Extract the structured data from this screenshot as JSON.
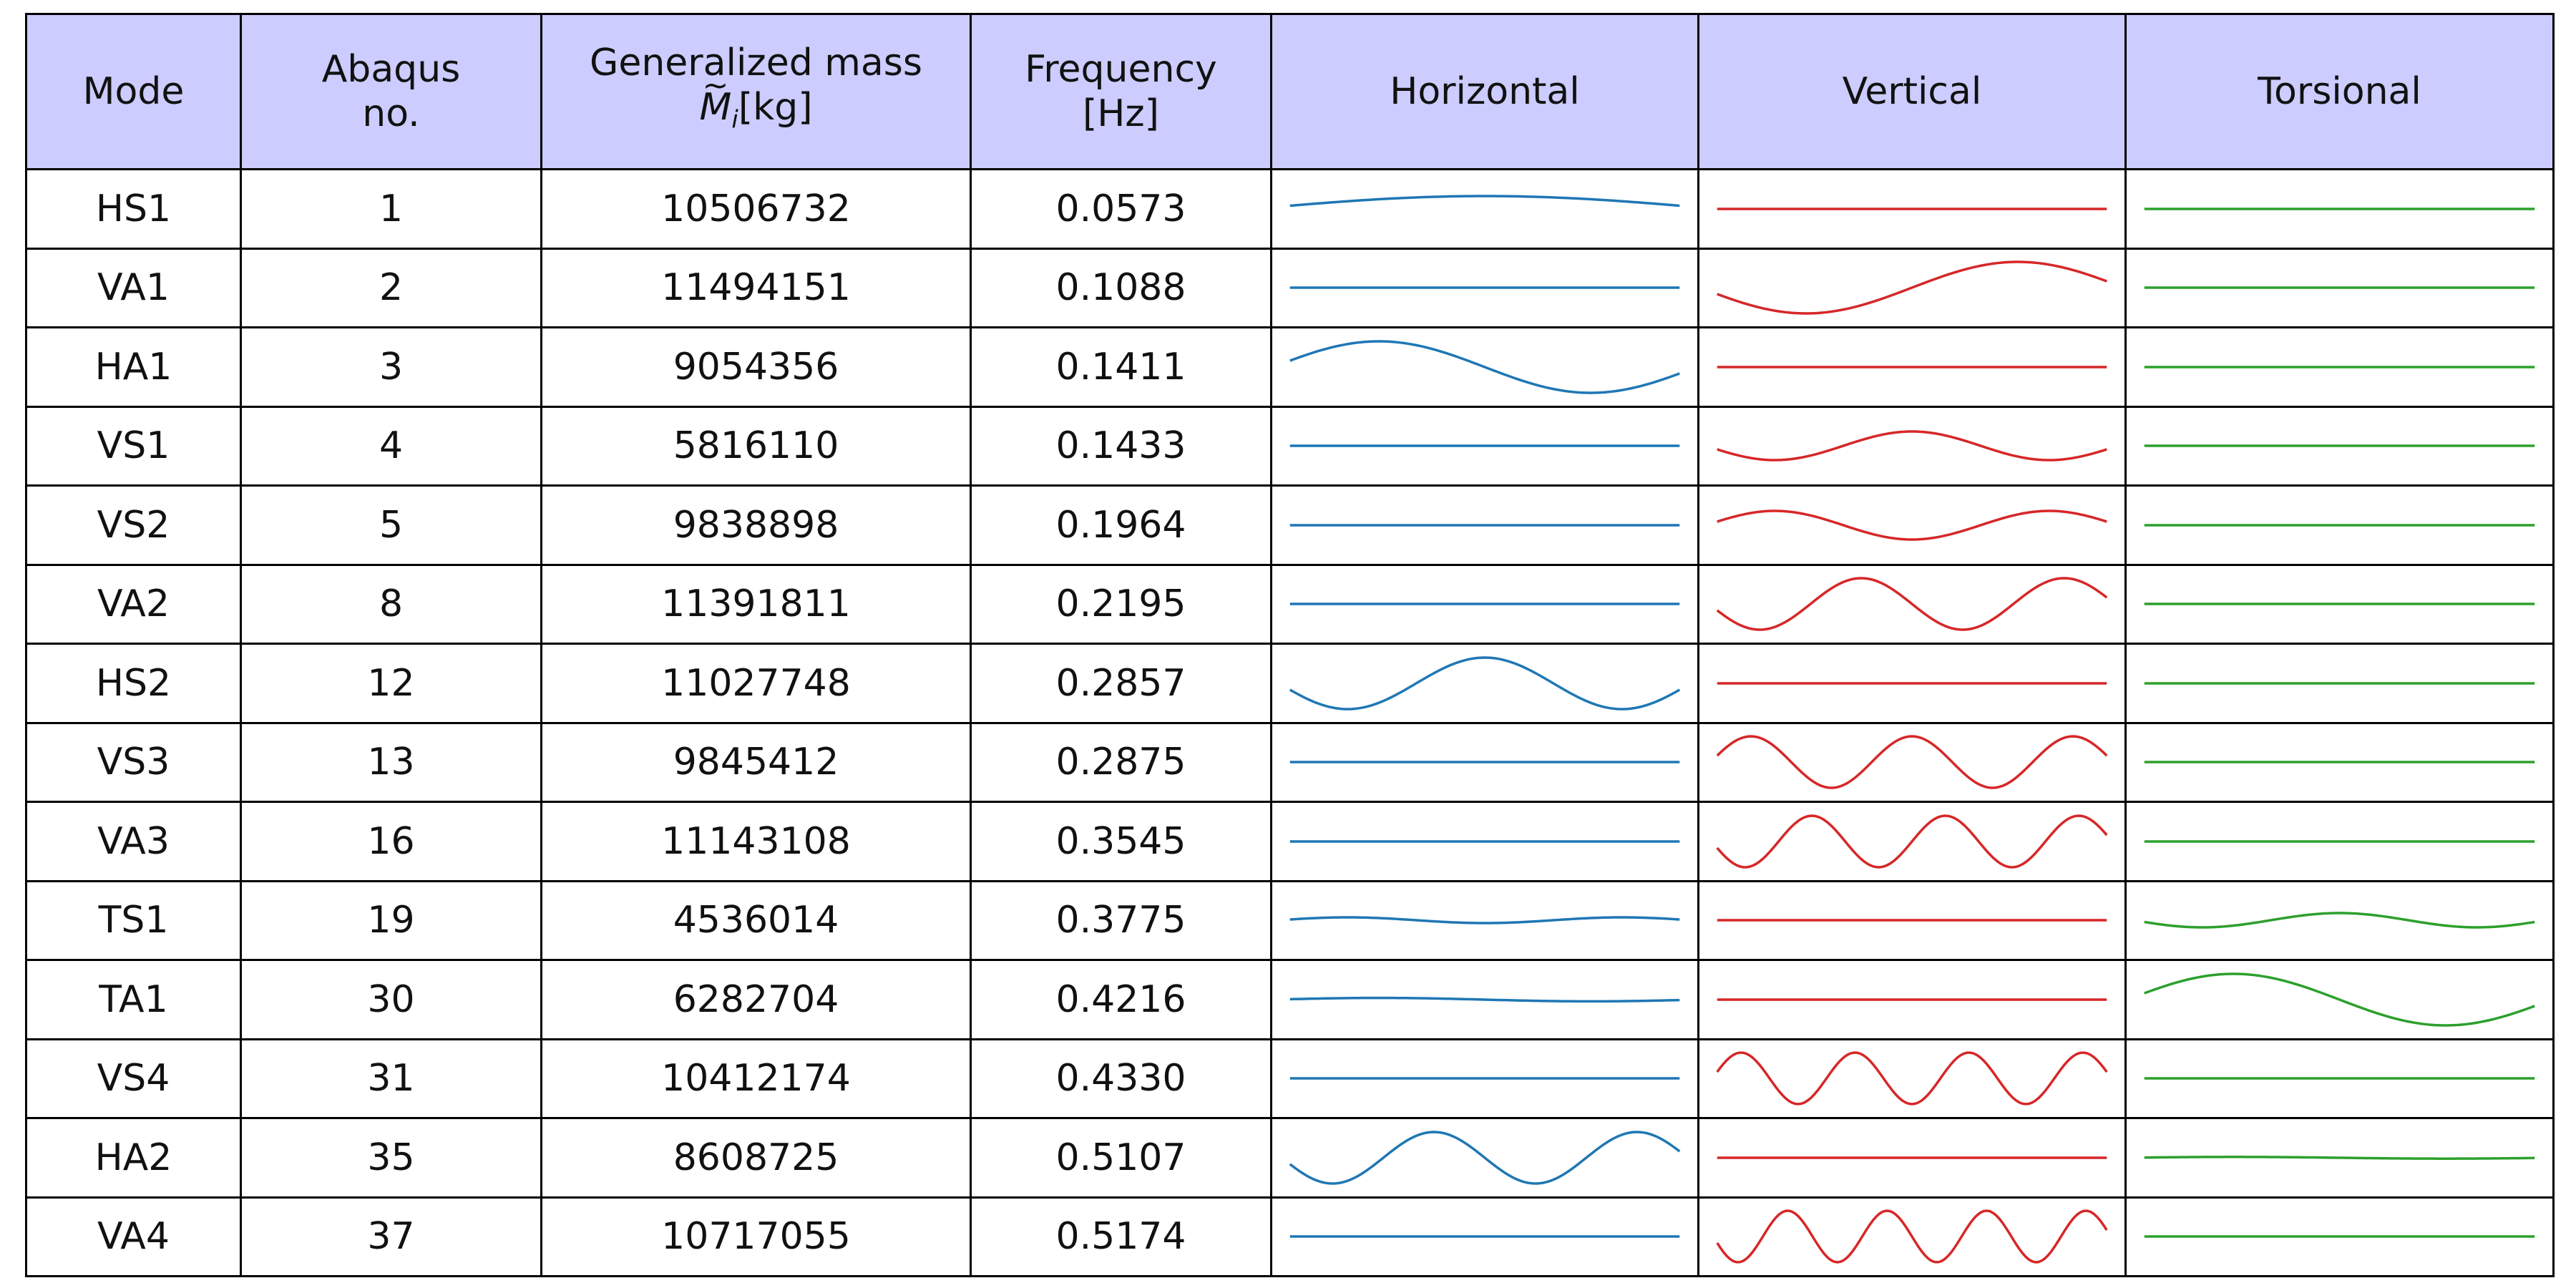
{
  "table": {
    "headers": {
      "mode": "Mode",
      "abaqus_line1": "Abaqus",
      "abaqus_line2": "no.",
      "mass_line1": "Generalized mass",
      "mass_symbol": "M",
      "mass_subscript": "i",
      "mass_unit": "[kg]",
      "freq_line1": "Frequency",
      "freq_line2": "[Hz]",
      "horizontal": "Horizontal",
      "vertical": "Vertical",
      "torsional": "Torsional"
    },
    "colors": {
      "header_bg": "#ccccff",
      "horizontal": "#1f77b4",
      "vertical": "#d62728",
      "torsional": "#2ca02c"
    },
    "rows": [
      {
        "mode": "HS1",
        "abaqus": "1",
        "mass": "10506732",
        "freq": "0.0573",
        "h": {
          "amp": 0.45,
          "halfwaves": 1,
          "sign": 1
        },
        "v": {
          "amp": 0,
          "halfwaves": 1,
          "sign": 1
        },
        "t": {
          "amp": 0,
          "halfwaves": 1,
          "sign": 1
        }
      },
      {
        "mode": "VA1",
        "abaqus": "2",
        "mass": "11494151",
        "freq": "0.1088",
        "h": {
          "amp": 0,
          "halfwaves": 1,
          "sign": 1
        },
        "v": {
          "amp": 0.9,
          "halfwaves": 2,
          "sign": -1
        },
        "t": {
          "amp": 0,
          "halfwaves": 1,
          "sign": 1
        }
      },
      {
        "mode": "HA1",
        "abaqus": "3",
        "mass": "9054356",
        "freq": "0.1411",
        "h": {
          "amp": 0.9,
          "halfwaves": 2,
          "sign": 1
        },
        "v": {
          "amp": 0,
          "halfwaves": 1,
          "sign": 1
        },
        "t": {
          "amp": 0,
          "halfwaves": 1,
          "sign": 1
        }
      },
      {
        "mode": "VS1",
        "abaqus": "4",
        "mass": "5816110",
        "freq": "0.1433",
        "h": {
          "amp": 0,
          "halfwaves": 1,
          "sign": 1
        },
        "v": {
          "amp": 0.5,
          "halfwaves": 3,
          "sign": -1
        },
        "t": {
          "amp": 0,
          "halfwaves": 1,
          "sign": 1
        }
      },
      {
        "mode": "VS2",
        "abaqus": "5",
        "mass": "9838898",
        "freq": "0.1964",
        "h": {
          "amp": 0,
          "halfwaves": 1,
          "sign": 1
        },
        "v": {
          "amp": 0.5,
          "halfwaves": 3,
          "sign": 1
        },
        "t": {
          "amp": 0,
          "halfwaves": 1,
          "sign": 1
        }
      },
      {
        "mode": "VA2",
        "abaqus": "8",
        "mass": "11391811",
        "freq": "0.2195",
        "h": {
          "amp": 0,
          "halfwaves": 1,
          "sign": 1
        },
        "v": {
          "amp": 0.9,
          "halfwaves": 4,
          "sign": -1
        },
        "t": {
          "amp": 0,
          "halfwaves": 1,
          "sign": 1
        }
      },
      {
        "mode": "HS2",
        "abaqus": "12",
        "mass": "11027748",
        "freq": "0.2857",
        "h": {
          "amp": 0.9,
          "halfwaves": 3,
          "sign": -1
        },
        "v": {
          "amp": 0,
          "halfwaves": 1,
          "sign": 1
        },
        "t": {
          "amp": 0,
          "halfwaves": 1,
          "sign": 1
        }
      },
      {
        "mode": "VS3",
        "abaqus": "13",
        "mass": "9845412",
        "freq": "0.2875",
        "h": {
          "amp": 0,
          "halfwaves": 1,
          "sign": 1
        },
        "v": {
          "amp": 0.9,
          "halfwaves": 5,
          "sign": 1
        },
        "t": {
          "amp": 0,
          "halfwaves": 1,
          "sign": 1
        }
      },
      {
        "mode": "VA3",
        "abaqus": "16",
        "mass": "11143108",
        "freq": "0.3545",
        "h": {
          "amp": 0,
          "halfwaves": 1,
          "sign": 1
        },
        "v": {
          "amp": 0.9,
          "halfwaves": 6,
          "sign": -1
        },
        "t": {
          "amp": 0,
          "halfwaves": 1,
          "sign": 1
        }
      },
      {
        "mode": "TS1",
        "abaqus": "19",
        "mass": "4536014",
        "freq": "0.3775",
        "h": {
          "amp": 0.1,
          "halfwaves": 3,
          "sign": 1
        },
        "v": {
          "amp": 0,
          "halfwaves": 1,
          "sign": 1
        },
        "t": {
          "amp": 0.25,
          "halfwaves": 3,
          "sign": -1
        }
      },
      {
        "mode": "TA1",
        "abaqus": "30",
        "mass": "6282704",
        "freq": "0.4216",
        "h": {
          "amp": 0.06,
          "halfwaves": 2,
          "sign": 1
        },
        "v": {
          "amp": 0,
          "halfwaves": 1,
          "sign": 1
        },
        "t": {
          "amp": 0.9,
          "halfwaves": 2,
          "sign": 1
        }
      },
      {
        "mode": "VS4",
        "abaqus": "31",
        "mass": "10412174",
        "freq": "0.4330",
        "h": {
          "amp": 0,
          "halfwaves": 1,
          "sign": 1
        },
        "v": {
          "amp": 0.9,
          "halfwaves": 7,
          "sign": 1
        },
        "t": {
          "amp": 0,
          "halfwaves": 1,
          "sign": 1
        }
      },
      {
        "mode": "HA2",
        "abaqus": "35",
        "mass": "8608725",
        "freq": "0.5107",
        "h": {
          "amp": 0.9,
          "halfwaves": 4,
          "sign": -1
        },
        "v": {
          "amp": 0,
          "halfwaves": 1,
          "sign": 1
        },
        "t": {
          "amp": 0.03,
          "halfwaves": 2,
          "sign": 1
        }
      },
      {
        "mode": "VA4",
        "abaqus": "37",
        "mass": "10717055",
        "freq": "0.5174",
        "h": {
          "amp": 0,
          "halfwaves": 1,
          "sign": 1
        },
        "v": {
          "amp": 0.9,
          "halfwaves": 8,
          "sign": -1
        },
        "t": {
          "amp": 0,
          "halfwaves": 1,
          "sign": 1
        }
      }
    ]
  }
}
